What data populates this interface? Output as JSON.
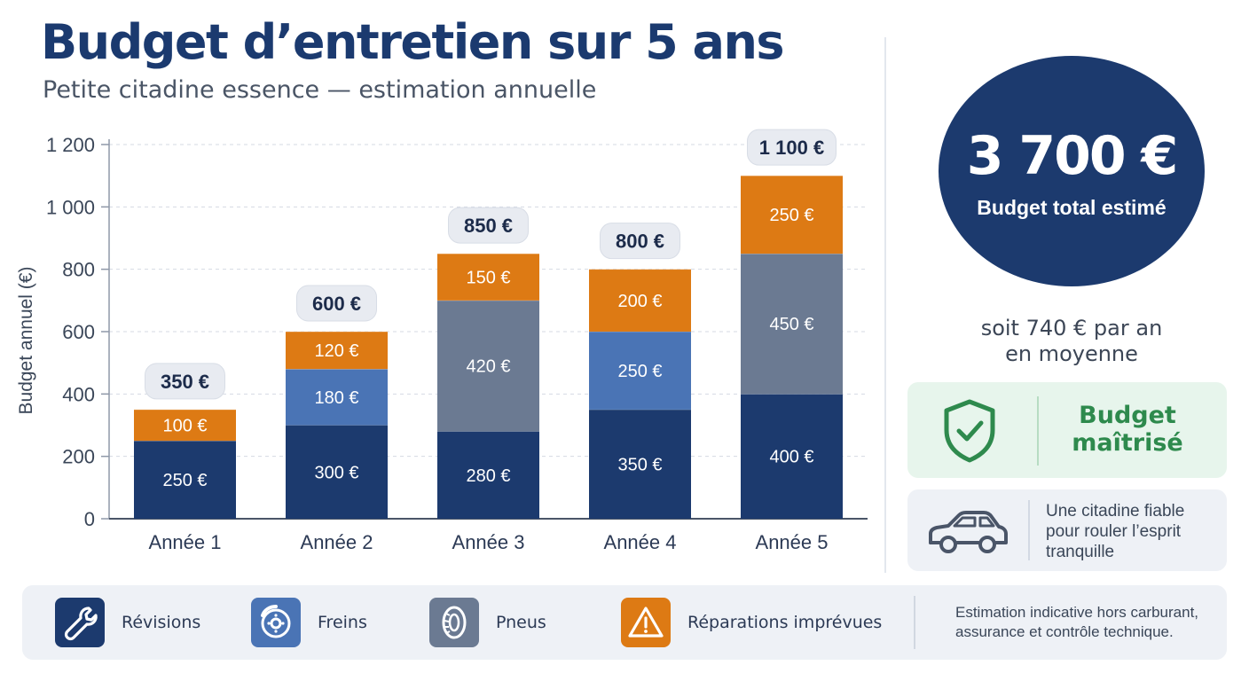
{
  "header": {
    "title": "Budget d’entretien sur 5 ans",
    "subtitle": "Petite citadine essence — estimation annuelle"
  },
  "colors": {
    "revisions": "#1c3a6e",
    "freins": "#4a74b5",
    "pneus": "#6b7a92",
    "reparations": "#dd7a14"
  },
  "chart_data": {
    "type": "bar",
    "stacked": true,
    "ylabel": "Budget annuel (€)",
    "xlabel": "",
    "ylim": [
      0,
      1200
    ],
    "yticks": [
      0,
      200,
      400,
      600,
      800,
      1000,
      1200
    ],
    "ytick_labels": [
      "0",
      "200",
      "400",
      "600",
      "800",
      "1 000",
      "1 200"
    ],
    "grid": true,
    "categories": [
      "Année 1",
      "Année 2",
      "Année 3",
      "Année 4",
      "Année 5"
    ],
    "series": [
      {
        "name": "Révisions",
        "color": "#1c3a6e",
        "values": [
          250,
          300,
          280,
          350,
          400
        ],
        "labels": [
          "250 €",
          "300 €",
          "280 €",
          "350 €",
          "400 €"
        ]
      },
      {
        "name": "Freins",
        "color": "#4a74b5",
        "values": [
          0,
          180,
          0,
          250,
          0
        ],
        "labels": [
          "",
          "180 €",
          "",
          "250 €",
          ""
        ]
      },
      {
        "name": "Pneus",
        "color": "#6b7a92",
        "values": [
          0,
          0,
          420,
          0,
          450
        ],
        "labels": [
          "",
          "",
          "420 €",
          "",
          "450 €"
        ]
      },
      {
        "name": "Réparations imprévues",
        "color": "#dd7a14",
        "values": [
          100,
          120,
          150,
          200,
          250
        ],
        "labels": [
          "100 €",
          "120 €",
          "150 €",
          "200 €",
          "250 €"
        ]
      }
    ],
    "totals": [
      350,
      600,
      850,
      800,
      1100
    ],
    "total_labels": [
      "350 €",
      "600 €",
      "850 €",
      "800 €",
      "1 100 €"
    ]
  },
  "summary": {
    "total": "3 700 €",
    "total_label": "Budget total estimé",
    "average_line1": "soit 740 € par an",
    "average_line2": "en moyenne"
  },
  "badges": {
    "ok_line1": "Budget",
    "ok_line2": "maîtrisé",
    "ok_icon": "shield-check-icon",
    "car_text": "Une citadine fiable pour rouler l’esprit tranquille",
    "car_icon": "car-icon"
  },
  "legend": {
    "items": [
      {
        "label": "Révisions",
        "icon": "wrench-icon",
        "color": "#1c3a6e"
      },
      {
        "label": "Freins",
        "icon": "brake-disc-icon",
        "color": "#4a74b5"
      },
      {
        "label": "Pneus",
        "icon": "tire-icon",
        "color": "#6b7a92"
      },
      {
        "label": "Réparations imprévues",
        "icon": "warning-icon",
        "color": "#dd7a14"
      }
    ],
    "note": "Estimation indicative hors carburant, assurance et contrôle technique."
  }
}
